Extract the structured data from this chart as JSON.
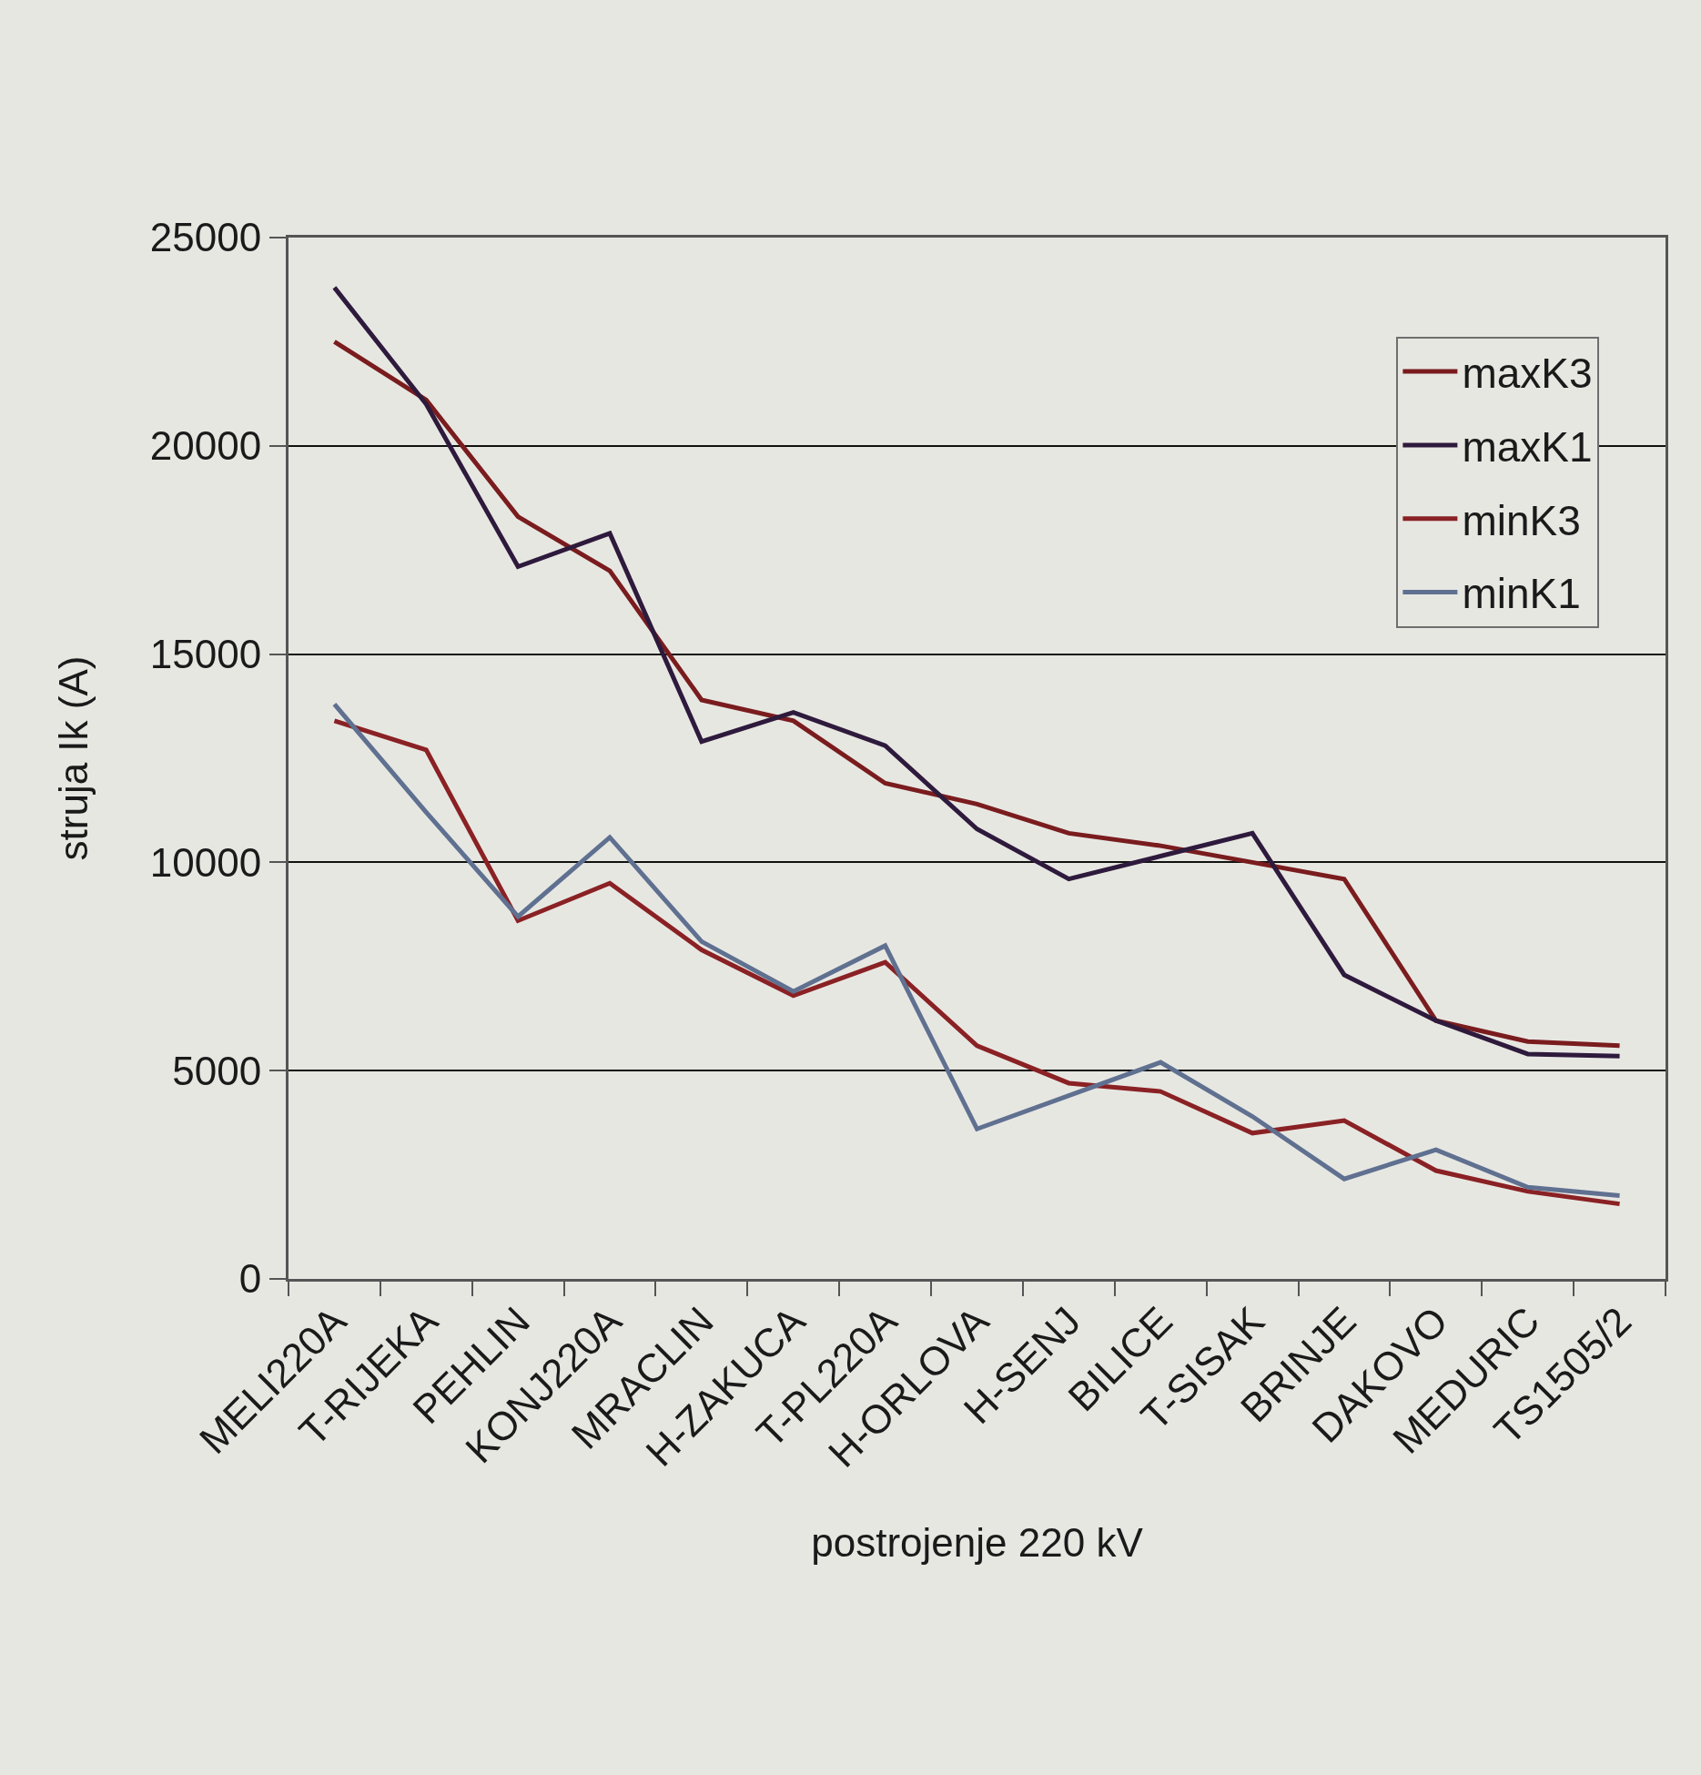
{
  "chart_data": {
    "type": "line",
    "xlabel": "postrojenje 220 kV",
    "ylabel": "struja Ik (A)",
    "categories": [
      "MELI220A",
      "T-RIJEKA",
      "PEHLIN",
      "KONJ220A",
      "MRACLIN",
      "H-ZAKUCA",
      "T-PL220A",
      "H-ORLOVA",
      "H-SENJ",
      "BILICE",
      "T-SISAK",
      "BRINJE",
      "DAKOVO",
      "MEDURIC",
      "TS1505/2"
    ],
    "series": [
      {
        "name": "maxK3",
        "color": "#7a1c1e",
        "values": [
          22500,
          21100,
          18300,
          17000,
          13900,
          13400,
          11900,
          11400,
          10700,
          10400,
          10000,
          9600,
          6200,
          5700,
          5600
        ]
      },
      {
        "name": "maxK1",
        "color": "#2e1a3c",
        "values": [
          23800,
          21000,
          17100,
          17900,
          12900,
          13600,
          12800,
          10800,
          9600,
          10150,
          10700,
          7300,
          6200,
          5400,
          5350
        ]
      },
      {
        "name": "minK3",
        "color": "#8a2124",
        "values": [
          13400,
          12700,
          8600,
          9500,
          7900,
          6800,
          7600,
          5600,
          4700,
          4500,
          3500,
          3800,
          2600,
          2100,
          1800
        ]
      },
      {
        "name": "minK1",
        "color": "#5f7090",
        "values": [
          13800,
          11200,
          8700,
          10600,
          8100,
          6900,
          8000,
          3600,
          4400,
          5200,
          3900,
          2400,
          3100,
          2200,
          2000
        ]
      }
    ],
    "ylim": [
      0,
      25000
    ],
    "yticks": [
      0,
      5000,
      10000,
      15000,
      20000,
      25000
    ],
    "grid": "y",
    "legend": "top right"
  }
}
